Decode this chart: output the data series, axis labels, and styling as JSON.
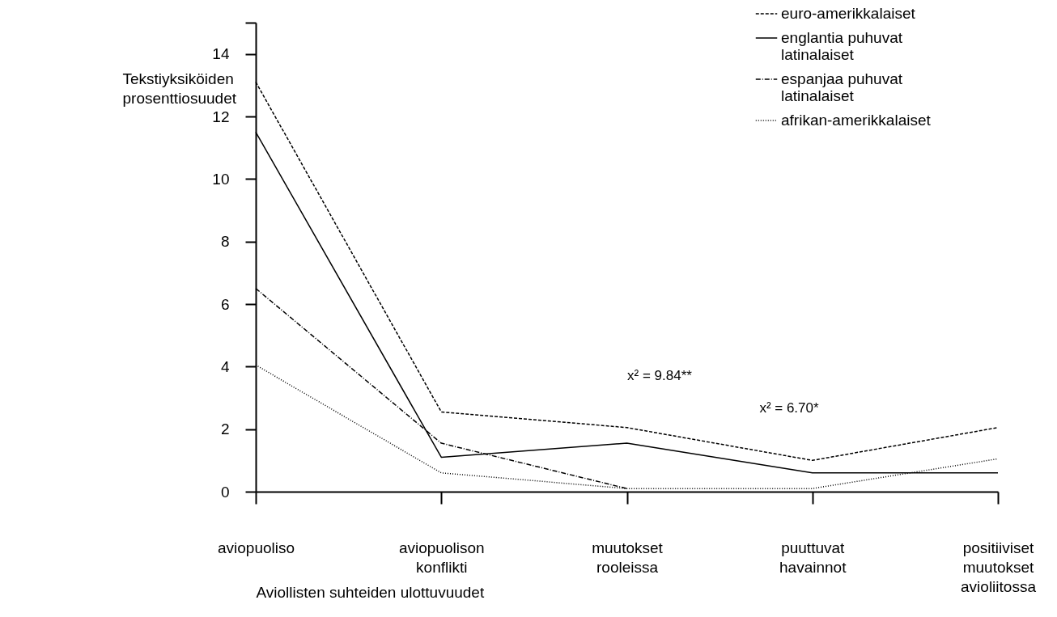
{
  "chart_data": {
    "type": "line",
    "ylabel": "Tekstiyksiköiden prosenttiosuudet",
    "xlabel": "Aviollisten suhteiden ulottuvuudet",
    "categories": [
      "aviopuoliso",
      "aviopuolison konflikti",
      "muutokset rooleissa",
      "puuttuvat havainnot",
      "positiiviset muutokset avioliitossa"
    ],
    "series": [
      {
        "name": "euro-amerikkalaiset",
        "color": "#000000",
        "line_style": "dashed",
        "values": [
          13.1,
          2.55,
          2.05,
          1.0,
          2.05
        ]
      },
      {
        "name": "englantia puhuvat latinalaiset",
        "color": "#000000",
        "line_style": "solid",
        "values": [
          11.5,
          1.1,
          1.55,
          0.6,
          0.6
        ]
      },
      {
        "name": "espanjaa puhuvat latinalaiset",
        "color": "#000000",
        "line_style": "dashdot",
        "values": [
          6.5,
          1.55,
          0.1,
          null,
          null
        ]
      },
      {
        "name": "afrikan-amerikkalaiset",
        "color": "#000000",
        "line_style": "dotted",
        "values": [
          4.05,
          0.6,
          0.1,
          0.1,
          1.05
        ]
      }
    ],
    "ylim": [
      0,
      15
    ],
    "yticks": [
      0,
      2,
      4,
      6,
      8,
      10,
      12,
      14,
      {
        "value": 15,
        "label": null
      }
    ],
    "annotations": [
      "x² = 9.84**",
      "x² = 6.70*"
    ],
    "grid": false,
    "legend": "top right",
    "marker": "none"
  }
}
